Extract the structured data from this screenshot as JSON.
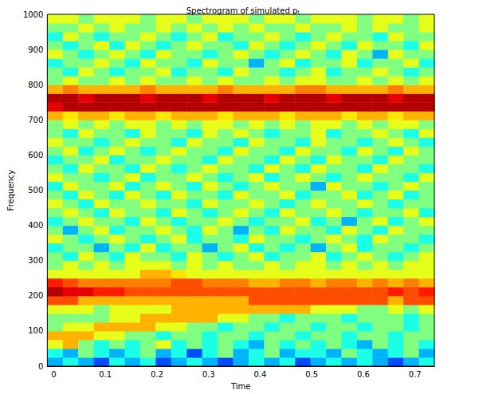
{
  "chart_data": {
    "type": "heatmap",
    "title": "Spectrogram of simulated pₜ",
    "x_label": "Time",
    "y_label": "Frequency",
    "xlim": [
      -0.0125,
      0.7375
    ],
    "xticks": [
      0,
      0.1,
      0.2,
      0.3,
      0.4,
      0.5,
      0.6,
      0.7
    ],
    "ylim": [
      0,
      1000
    ],
    "yticks": [
      0,
      100,
      200,
      300,
      400,
      500,
      600,
      700,
      800,
      900,
      1000
    ],
    "color_range": [
      0,
      10
    ],
    "x": [
      0.0025,
      0.0325,
      0.0625,
      0.0925,
      0.1225,
      0.1525,
      0.1825,
      0.2125,
      0.2425,
      0.2725,
      0.3025,
      0.3325,
      0.3625,
      0.3925,
      0.4225,
      0.4525,
      0.4825,
      0.5125,
      0.5425,
      0.5725,
      0.6025,
      0.6325,
      0.6625,
      0.6925,
      0.7225
    ],
    "y": [
      12.5,
      37.5,
      62.5,
      87.5,
      112.5,
      137.5,
      162.5,
      187.5,
      212.5,
      237.5,
      262.5,
      287.5,
      312.5,
      337.5,
      362.5,
      387.5,
      412.5,
      437.5,
      462.5,
      487.5,
      512.5,
      537.5,
      562.5,
      587.5,
      612.5,
      637.5,
      662.5,
      687.5,
      712.5,
      737.5,
      762.5,
      787.5,
      812.5,
      837.5,
      862.5,
      887.5,
      912.5,
      937.5,
      962.5,
      987.5
    ],
    "cells": [
      [
        3,
        4,
        3,
        2,
        4,
        3,
        4,
        2,
        3,
        4,
        3,
        2,
        3,
        4,
        3,
        4,
        2,
        3,
        4,
        3,
        4,
        3,
        2,
        3,
        4
      ],
      [
        4,
        3,
        5,
        4,
        3,
        4,
        5,
        3,
        4,
        2,
        4,
        5,
        3,
        4,
        5,
        3,
        4,
        4,
        3,
        5,
        4,
        3,
        4,
        5,
        3
      ],
      [
        6,
        7,
        5,
        4,
        5,
        4,
        5,
        6,
        4,
        5,
        4,
        5,
        4,
        3,
        5,
        4,
        5,
        4,
        5,
        4,
        3,
        5,
        4,
        5,
        4
      ],
      [
        7,
        7,
        7,
        6,
        6,
        5,
        5,
        4,
        5,
        5,
        4,
        5,
        5,
        4,
        5,
        5,
        4,
        5,
        5,
        4,
        5,
        5,
        4,
        5,
        5
      ],
      [
        5,
        6,
        6,
        7,
        7,
        7,
        7,
        6,
        6,
        5,
        5,
        4,
        5,
        5,
        4,
        5,
        5,
        4,
        5,
        5,
        4,
        5,
        5,
        4,
        5
      ],
      [
        5,
        5,
        5,
        5,
        6,
        6,
        7,
        7,
        7,
        7,
        7,
        6,
        6,
        5,
        5,
        4,
        5,
        5,
        5,
        4,
        5,
        5,
        5,
        4,
        5
      ],
      [
        6,
        6,
        6,
        5,
        6,
        6,
        6,
        6,
        7,
        7,
        7,
        7,
        7,
        7,
        7,
        7,
        7,
        6,
        6,
        6,
        5,
        5,
        6,
        5,
        6
      ],
      [
        8,
        8,
        7,
        7,
        7,
        7,
        7,
        7,
        7,
        7,
        7,
        7,
        7,
        8,
        8,
        8,
        8,
        8,
        8,
        8,
        8,
        8,
        7,
        8,
        8
      ],
      [
        9.5,
        9,
        9,
        8.5,
        8.5,
        8,
        8,
        8,
        8,
        8,
        8,
        8,
        8,
        8,
        8,
        8,
        8,
        8,
        8,
        8,
        8,
        8,
        8.5,
        8,
        8.5
      ],
      [
        8.5,
        8,
        7.5,
        7.5,
        7.5,
        7.5,
        7.5,
        7.5,
        8,
        8,
        7.5,
        7.5,
        7.5,
        7,
        7,
        7.5,
        7.5,
        7,
        7.5,
        7.5,
        7,
        7.5,
        7,
        7.5,
        7
      ],
      [
        6,
        6,
        6,
        6,
        6,
        6,
        7,
        7,
        6.5,
        6,
        6,
        6,
        6,
        6,
        6,
        6,
        6,
        6,
        6,
        6,
        6,
        6,
        6,
        6,
        6
      ],
      [
        5,
        6,
        5,
        6,
        5,
        6,
        6,
        6,
        5,
        6,
        5,
        6,
        5,
        5,
        6,
        5,
        6,
        6,
        5,
        6,
        5,
        6,
        5,
        6,
        6
      ],
      [
        5,
        4,
        6,
        5,
        4,
        6,
        5,
        5,
        4,
        6,
        5,
        4,
        5,
        6,
        4,
        5,
        5,
        6,
        4,
        5,
        6,
        5,
        4,
        5,
        6
      ],
      [
        4,
        5,
        5,
        3,
        5,
        4,
        6,
        4,
        5,
        5,
        3,
        5,
        6,
        4,
        5,
        4,
        5,
        3,
        5,
        6,
        4,
        5,
        5,
        4,
        5
      ],
      [
        6,
        5,
        4,
        5,
        6,
        5,
        4,
        5,
        6,
        4,
        5,
        5,
        4,
        6,
        5,
        5,
        4,
        5,
        6,
        5,
        4,
        6,
        5,
        5,
        4
      ],
      [
        5,
        3,
        5,
        6,
        4,
        5,
        5,
        6,
        5,
        4,
        6,
        5,
        3,
        5,
        4,
        6,
        5,
        5,
        4,
        6,
        5,
        4,
        6,
        5,
        5
      ],
      [
        4,
        5,
        6,
        5,
        5,
        4,
        6,
        5,
        4,
        5,
        5,
        6,
        5,
        4,
        5,
        5,
        6,
        4,
        5,
        3,
        5,
        6,
        4,
        5,
        6
      ],
      [
        5,
        6,
        5,
        4,
        6,
        5,
        5,
        4,
        6,
        5,
        4,
        5,
        6,
        5,
        4,
        6,
        5,
        5,
        6,
        5,
        4,
        5,
        5,
        6,
        4
      ],
      [
        6,
        5,
        4,
        6,
        5,
        5,
        6,
        5,
        5,
        4,
        6,
        5,
        5,
        6,
        5,
        4,
        5,
        6,
        5,
        5,
        6,
        5,
        4,
        5,
        5
      ],
      [
        5,
        4,
        6,
        5,
        4,
        6,
        5,
        4,
        6,
        5,
        5,
        4,
        6,
        5,
        5,
        6,
        4,
        5,
        5,
        6,
        4,
        5,
        6,
        4,
        5
      ],
      [
        4,
        6,
        5,
        5,
        6,
        4,
        5,
        6,
        5,
        4,
        6,
        5,
        4,
        5,
        6,
        5,
        5,
        3,
        6,
        5,
        5,
        4,
        5,
        6,
        5
      ],
      [
        6,
        5,
        5,
        4,
        5,
        6,
        4,
        5,
        5,
        6,
        5,
        4,
        5,
        6,
        4,
        5,
        6,
        5,
        4,
        5,
        6,
        5,
        5,
        4,
        6
      ],
      [
        5,
        4,
        6,
        5,
        5,
        4,
        6,
        5,
        4,
        5,
        6,
        5,
        5,
        4,
        6,
        5,
        4,
        6,
        5,
        5,
        4,
        6,
        5,
        5,
        4
      ],
      [
        4,
        5,
        5,
        6,
        4,
        5,
        5,
        6,
        5,
        5,
        4,
        6,
        5,
        5,
        4,
        6,
        5,
        4,
        6,
        5,
        5,
        4,
        6,
        5,
        5
      ],
      [
        5,
        6,
        4,
        5,
        6,
        5,
        4,
        5,
        6,
        5,
        5,
        4,
        6,
        5,
        5,
        4,
        6,
        5,
        5,
        4,
        6,
        5,
        4,
        6,
        5
      ],
      [
        6,
        5,
        5,
        4,
        5,
        6,
        5,
        5,
        4,
        6,
        5,
        5,
        4,
        6,
        5,
        5,
        4,
        6,
        5,
        5,
        4,
        5,
        6,
        5,
        4
      ],
      [
        5,
        4,
        6,
        5,
        5,
        4,
        6,
        5,
        5,
        4,
        6,
        5,
        6,
        5,
        4,
        5,
        5,
        6,
        4,
        5,
        5,
        6,
        5,
        4,
        6
      ],
      [
        5,
        6,
        5,
        6,
        5,
        6,
        6,
        5,
        6,
        5,
        6,
        6,
        5,
        6,
        5,
        6,
        5,
        6,
        6,
        5,
        6,
        5,
        6,
        6,
        5
      ],
      [
        7,
        6.5,
        7,
        7,
        6.5,
        7,
        7,
        6.5,
        7,
        7,
        7,
        6.5,
        7,
        7,
        7,
        6.5,
        7,
        7,
        7,
        6.5,
        7,
        7,
        6.5,
        7,
        7
      ],
      [
        9,
        9.5,
        9.5,
        9.5,
        9.5,
        9.5,
        9.5,
        9.5,
        9.5,
        9.5,
        9.5,
        9.5,
        9.5,
        9.5,
        9.5,
        9.5,
        9.5,
        9.5,
        9.5,
        9.5,
        9.5,
        9.5,
        9.5,
        9.5,
        9.5
      ],
      [
        9.5,
        9.5,
        9,
        9.5,
        9.5,
        9.5,
        9,
        9.5,
        9.5,
        9.5,
        9,
        9.5,
        9.5,
        9.5,
        9,
        9.5,
        9.5,
        9.5,
        9,
        9.5,
        9.5,
        9.5,
        9,
        9.5,
        9.5
      ],
      [
        7,
        7.5,
        7,
        7,
        7,
        7,
        7.5,
        7,
        7,
        7,
        7,
        7.5,
        7,
        7,
        7,
        7,
        7.5,
        7.5,
        7,
        7,
        7,
        7,
        7.5,
        7,
        7
      ],
      [
        5,
        6,
        5,
        5,
        6,
        5,
        6,
        5,
        5,
        6,
        5,
        6,
        5,
        5,
        6,
        5,
        6,
        6,
        5,
        5,
        6,
        5,
        6,
        5,
        6
      ],
      [
        5,
        4,
        6,
        5,
        4,
        5,
        5,
        6,
        4,
        5,
        5,
        4,
        6,
        5,
        5,
        4,
        5,
        6,
        4,
        5,
        5,
        6,
        5,
        4,
        5
      ],
      [
        4,
        5,
        5,
        6,
        5,
        4,
        6,
        5,
        5,
        4,
        6,
        5,
        5,
        3,
        5,
        6,
        4,
        5,
        5,
        6,
        4,
        5,
        5,
        6,
        4
      ],
      [
        6,
        5,
        4,
        5,
        6,
        5,
        4,
        6,
        5,
        5,
        4,
        5,
        6,
        5,
        4,
        5,
        6,
        5,
        4,
        6,
        5,
        3,
        6,
        5,
        5
      ],
      [
        5,
        4,
        5,
        6,
        4,
        6,
        5,
        4,
        5,
        6,
        5,
        5,
        4,
        6,
        5,
        4,
        5,
        6,
        5,
        4,
        6,
        5,
        5,
        4,
        6
      ],
      [
        4,
        6,
        5,
        4,
        5,
        5,
        6,
        5,
        4,
        5,
        6,
        4,
        5,
        5,
        6,
        5,
        4,
        5,
        6,
        5,
        5,
        4,
        6,
        5,
        5
      ],
      [
        5,
        5,
        6,
        5,
        6,
        5,
        5,
        6,
        5,
        6,
        5,
        6,
        5,
        6,
        5,
        5,
        6,
        5,
        5,
        6,
        5,
        6,
        5,
        5,
        6
      ],
      [
        6,
        6,
        5,
        6,
        6,
        6,
        5,
        6,
        6,
        5,
        6,
        6,
        6,
        5,
        6,
        6,
        5,
        6,
        6,
        6,
        5,
        6,
        6,
        5,
        6
      ]
    ]
  }
}
